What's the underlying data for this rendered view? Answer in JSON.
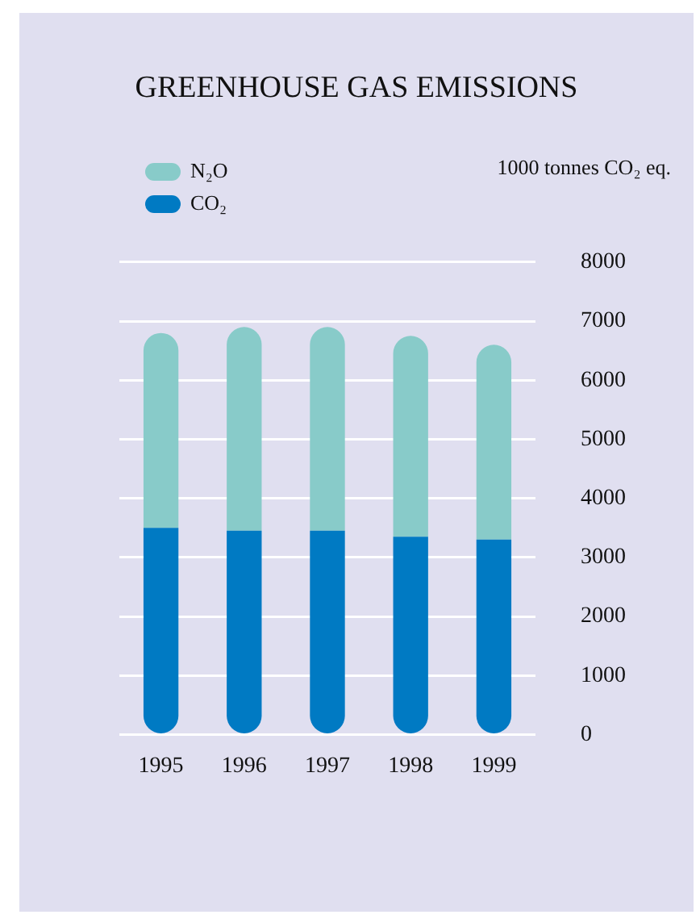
{
  "chart_data": {
    "type": "bar",
    "title": "GREENHOUSE GAS EMISSIONS",
    "ylabel": "1000 tonnes CO₂ eq.",
    "categories": [
      "1995",
      "1996",
      "1997",
      "1998",
      "1999"
    ],
    "stacked": true,
    "series": [
      {
        "name": "CO₂",
        "color": "#007ac3",
        "values": [
          3500,
          3450,
          3450,
          3350,
          3300
        ]
      },
      {
        "name": "N₂O",
        "color": "#88cbc9",
        "values": [
          3300,
          3450,
          3450,
          3400,
          3300
        ]
      }
    ],
    "ylim": [
      0,
      8000
    ],
    "yticks": [
      0,
      1000,
      2000,
      3000,
      4000,
      5000,
      6000,
      7000,
      8000
    ],
    "grid": true,
    "legend": "top left"
  }
}
